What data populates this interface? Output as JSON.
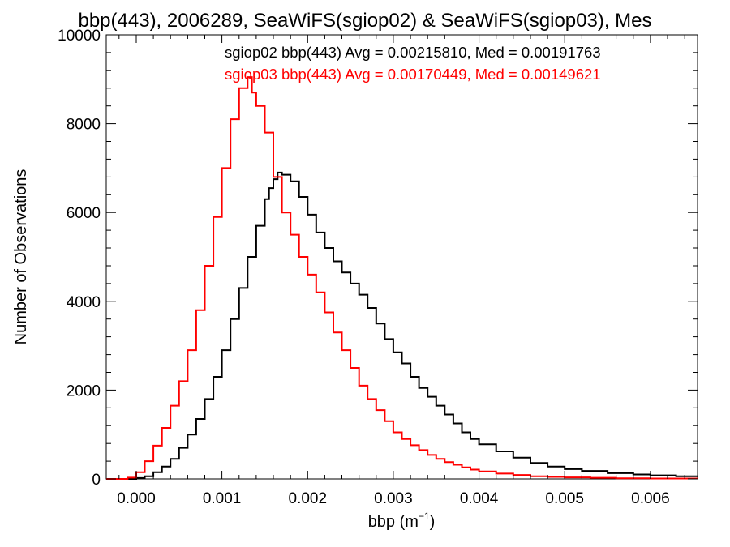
{
  "colors": {
    "background": "#ffffff",
    "axes": "#000000",
    "series_sgiop02": "#000000",
    "series_sgiop03": "#ff0000"
  },
  "chart_data": {
    "type": "line",
    "step": true,
    "title": "bbp(443), 2006289, SeaWiFS(sgiop02) & SeaWiFS(sgiop03), Mes",
    "xlabel_base": "bbp (m",
    "xlabel_exp": "−1",
    "xlabel_close": ")",
    "ylabel": "Number of Observations",
    "xlim": [
      -0.00035,
      0.00655
    ],
    "ylim": [
      0,
      10000
    ],
    "grid": false,
    "x_ticks": [
      0.0,
      0.001,
      0.002,
      0.003,
      0.004,
      0.005,
      0.006
    ],
    "x_tick_labels": [
      "0.000",
      "0.001",
      "0.002",
      "0.003",
      "0.004",
      "0.005",
      "0.006"
    ],
    "y_ticks": [
      0,
      2000,
      4000,
      6000,
      8000,
      10000
    ],
    "y_tick_labels": [
      "0",
      "2000",
      "4000",
      "6000",
      "8000",
      "10000"
    ],
    "legend": [
      {
        "text": "sgiop02 bbp(443) Avg = 0.00215810, Med = 0.00191763",
        "color": "#000000"
      },
      {
        "text": "sgiop03 bbp(443) Avg = 0.00170449, Med = 0.00149621",
        "color": "#ff0000"
      }
    ],
    "series": [
      {
        "name": "sgiop02",
        "color": "#000000",
        "points": [
          [
            -0.00035,
            0
          ],
          [
            -0.0001,
            0
          ],
          [
            0.0,
            20
          ],
          [
            0.0001,
            60
          ],
          [
            0.0002,
            150
          ],
          [
            0.0003,
            280
          ],
          [
            0.0004,
            450
          ],
          [
            0.0005,
            700
          ],
          [
            0.0006,
            1000
          ],
          [
            0.0007,
            1350
          ],
          [
            0.0008,
            1800
          ],
          [
            0.0009,
            2300
          ],
          [
            0.001,
            2900
          ],
          [
            0.0011,
            3600
          ],
          [
            0.0012,
            4300
          ],
          [
            0.0013,
            5000
          ],
          [
            0.0014,
            5700
          ],
          [
            0.0015,
            6300
          ],
          [
            0.00155,
            6550
          ],
          [
            0.0016,
            6750
          ],
          [
            0.00165,
            6900
          ],
          [
            0.0017,
            6850
          ],
          [
            0.0018,
            6700
          ],
          [
            0.0019,
            6350
          ],
          [
            0.002,
            5950
          ],
          [
            0.0021,
            5550
          ],
          [
            0.0022,
            5200
          ],
          [
            0.0023,
            4900
          ],
          [
            0.0024,
            4650
          ],
          [
            0.0025,
            4400
          ],
          [
            0.0026,
            4150
          ],
          [
            0.0027,
            3850
          ],
          [
            0.0028,
            3500
          ],
          [
            0.0029,
            3150
          ],
          [
            0.003,
            2850
          ],
          [
            0.0031,
            2600
          ],
          [
            0.0032,
            2300
          ],
          [
            0.0033,
            2050
          ],
          [
            0.0034,
            1850
          ],
          [
            0.0035,
            1650
          ],
          [
            0.0036,
            1450
          ],
          [
            0.0037,
            1250
          ],
          [
            0.0038,
            1050
          ],
          [
            0.0039,
            900
          ],
          [
            0.004,
            780
          ],
          [
            0.0042,
            620
          ],
          [
            0.0044,
            480
          ],
          [
            0.0046,
            360
          ],
          [
            0.0048,
            280
          ],
          [
            0.005,
            220
          ],
          [
            0.0052,
            180
          ],
          [
            0.0055,
            130
          ],
          [
            0.0058,
            100
          ],
          [
            0.006,
            80
          ],
          [
            0.0063,
            60
          ],
          [
            0.00655,
            50
          ]
        ]
      },
      {
        "name": "sgiop03",
        "color": "#ff0000",
        "points": [
          [
            -0.00035,
            0
          ],
          [
            -0.0001,
            30
          ],
          [
            0.0,
            150
          ],
          [
            0.0001,
            400
          ],
          [
            0.0002,
            750
          ],
          [
            0.0003,
            1150
          ],
          [
            0.0004,
            1650
          ],
          [
            0.0005,
            2200
          ],
          [
            0.0006,
            2900
          ],
          [
            0.0007,
            3800
          ],
          [
            0.0008,
            4800
          ],
          [
            0.0009,
            5900
          ],
          [
            0.001,
            7000
          ],
          [
            0.0011,
            8100
          ],
          [
            0.0012,
            8800
          ],
          [
            0.0013,
            9050
          ],
          [
            0.00135,
            8700
          ],
          [
            0.0014,
            8400
          ],
          [
            0.0015,
            7800
          ],
          [
            0.0016,
            6800
          ],
          [
            0.0017,
            6000
          ],
          [
            0.0018,
            5500
          ],
          [
            0.0019,
            5000
          ],
          [
            0.002,
            4600
          ],
          [
            0.0021,
            4200
          ],
          [
            0.0022,
            3750
          ],
          [
            0.0023,
            3300
          ],
          [
            0.0024,
            2900
          ],
          [
            0.0025,
            2500
          ],
          [
            0.0026,
            2100
          ],
          [
            0.0027,
            1800
          ],
          [
            0.0028,
            1550
          ],
          [
            0.0029,
            1300
          ],
          [
            0.003,
            1050
          ],
          [
            0.0031,
            900
          ],
          [
            0.0032,
            760
          ],
          [
            0.0033,
            650
          ],
          [
            0.0034,
            540
          ],
          [
            0.0035,
            450
          ],
          [
            0.0036,
            380
          ],
          [
            0.0037,
            320
          ],
          [
            0.0038,
            260
          ],
          [
            0.0039,
            210
          ],
          [
            0.004,
            170
          ],
          [
            0.0042,
            120
          ],
          [
            0.0044,
            90
          ],
          [
            0.0046,
            60
          ],
          [
            0.0048,
            45
          ],
          [
            0.005,
            35
          ],
          [
            0.0053,
            25
          ],
          [
            0.0056,
            15
          ],
          [
            0.006,
            10
          ],
          [
            0.00655,
            5
          ]
        ]
      }
    ]
  }
}
